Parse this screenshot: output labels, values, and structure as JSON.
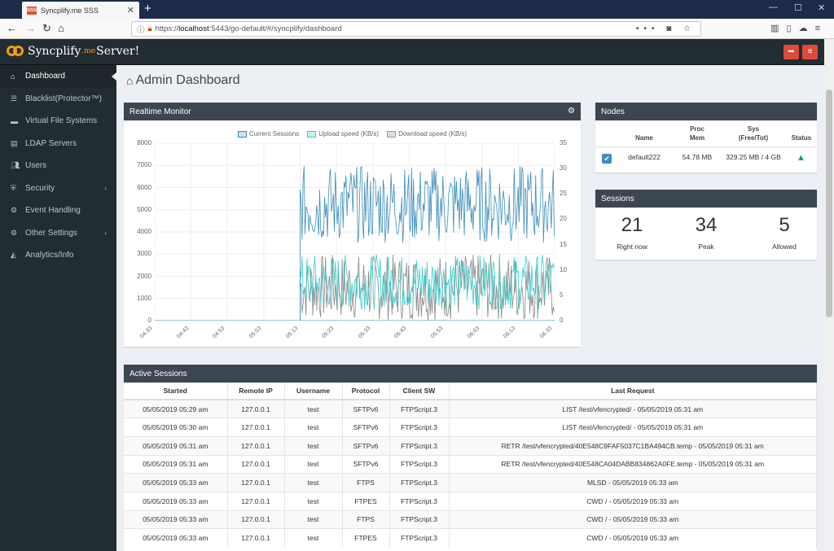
{
  "browser": {
    "tab_title": "Syncplify.me SSS",
    "tab_favicon": "SSS",
    "url_prefix": "https://",
    "url_host": "localhost",
    "url_rest": ":5443/go-default/#/syncplify/dashboard"
  },
  "app": {
    "logo_main": "Syncplify",
    "logo_me": ".me",
    "logo_server": "Server!",
    "accent_color": "#f39c12",
    "danger_color": "#dd4b39"
  },
  "sidebar": {
    "items": [
      {
        "label": "Dashboard",
        "icon": "home-icon"
      },
      {
        "label": "Blacklist(Protector™)",
        "icon": "list-icon"
      },
      {
        "label": "Virtual File Systems",
        "icon": "folder-icon"
      },
      {
        "label": "LDAP Servers",
        "icon": "server-icon"
      },
      {
        "label": "Users",
        "icon": "users-icon"
      },
      {
        "label": "Security",
        "icon": "shield-icon"
      },
      {
        "label": "Event Handling",
        "icon": "cogs-icon"
      },
      {
        "label": "Other Settings",
        "icon": "gears-icon"
      },
      {
        "label": "Analytics/Info",
        "icon": "area-chart-icon"
      }
    ]
  },
  "page": {
    "title": "Admin Dashboard"
  },
  "realtime": {
    "title": "Realtime Monitor",
    "legend": [
      "Current Sessions",
      "Upload speed (KB/s)",
      "Download speed (KB/s)"
    ]
  },
  "chart_data": {
    "type": "line",
    "x": [
      "04:33",
      "04:43",
      "04:53",
      "05:03",
      "05:13",
      "05:23",
      "05:33",
      "05:43",
      "05:53",
      "06:03",
      "06:13",
      "06:33"
    ],
    "y_left_ticks": [
      "8000",
      "7000",
      "6000",
      "5000",
      "4000",
      "3000",
      "2000",
      "1000",
      "0"
    ],
    "y_right_ticks": [
      "35",
      "30",
      "25",
      "20",
      "15",
      "10",
      "5",
      "0"
    ],
    "ylim_left": [
      0,
      8000
    ],
    "ylim_right": [
      0,
      35
    ],
    "series": [
      {
        "name": "Current Sessions",
        "color": "#3c8dbc",
        "axis": "left",
        "idle_value": 0,
        "active_range": [
          3500,
          7000
        ]
      },
      {
        "name": "Upload speed (KB/s)",
        "color": "#39cccc",
        "axis": "left",
        "idle_value": 0,
        "active_range": [
          500,
          3000
        ]
      },
      {
        "name": "Download speed (KB/s)",
        "color": "#888888",
        "axis": "left",
        "idle_value": 0,
        "active_range": [
          0,
          3000
        ]
      }
    ],
    "activity_starts_at": "05:13",
    "grid": true,
    "legend_position": "top"
  },
  "nodes": {
    "title": "Nodes",
    "headers": [
      "Name",
      "Proc\nMem",
      "Sys\n(Free/Tot)",
      "Status"
    ],
    "rows": [
      {
        "name": "default222",
        "proc_mem": "54.78 MB",
        "sys": "329.25 MB / 4 GB",
        "status": "up"
      }
    ]
  },
  "sessions": {
    "title": "Sessions",
    "stats": [
      {
        "value": "21",
        "label": "Right now"
      },
      {
        "value": "34",
        "label": "Peak"
      },
      {
        "value": "5",
        "label": "Allowed"
      }
    ]
  },
  "active_sessions": {
    "title": "Active Sessions",
    "headers": [
      "Started",
      "Remote IP",
      "Username",
      "Protocol",
      "Client SW",
      "Last Request"
    ],
    "rows": [
      [
        "05/05/2019 05:29 am",
        "127.0.0.1",
        "test",
        "SFTPv6",
        "FTPScript.3",
        "LIST /test/vfencrypted/ - 05/05/2019 05:31 am"
      ],
      [
        "05/05/2019 05:30 am",
        "127.0.0.1",
        "test",
        "SFTPv6",
        "FTPScript.3",
        "LIST /test/vfencrypted/ - 05/05/2019 05:31 am"
      ],
      [
        "05/05/2019 05:31 am",
        "127.0.0.1",
        "test",
        "SFTPv6",
        "FTPScript.3",
        "RETR /test/vfencrypted/40E548C9FAF5037C1BA494CB.temp - 05/05/2019 05:31 am"
      ],
      [
        "05/05/2019 05:31 am",
        "127.0.0.1",
        "test",
        "SFTPv6",
        "FTPScript.3",
        "RETR /test/vfencrypted/40E548CA04DABB834862A0FE.temp - 05/05/2019 05:31 am"
      ],
      [
        "05/05/2019 05:33 am",
        "127.0.0.1",
        "test",
        "FTPS",
        "FTPScript.3",
        "MLSD - 05/05/2019 05:33 am"
      ],
      [
        "05/05/2019 05:33 am",
        "127.0.0.1",
        "test",
        "FTPES",
        "FTPScript.3",
        "CWD / - 05/05/2019 05:33 am"
      ],
      [
        "05/05/2019 05:33 am",
        "127.0.0.1",
        "test",
        "FTPS",
        "FTPScript.3",
        "CWD / - 05/05/2019 05:33 am"
      ],
      [
        "05/05/2019 05:33 am",
        "127.0.0.1",
        "test",
        "FTPES",
        "FTPScript.3",
        "CWD / - 05/05/2019 05:33 am"
      ]
    ]
  }
}
